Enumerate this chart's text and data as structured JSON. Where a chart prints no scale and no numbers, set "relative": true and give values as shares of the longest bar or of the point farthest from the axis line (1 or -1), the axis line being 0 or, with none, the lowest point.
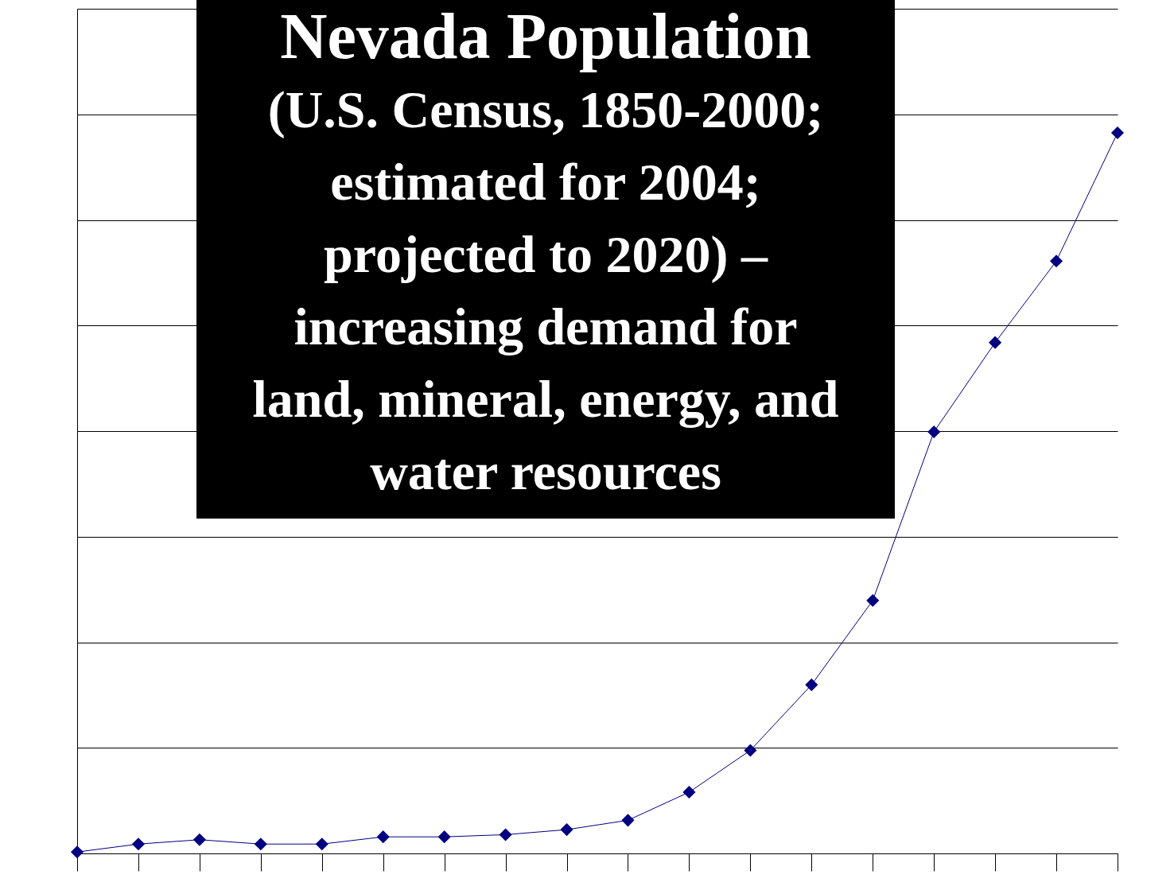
{
  "chart_data": {
    "type": "line",
    "title": "Nevada Population",
    "subtitle": "(U.S. Census, 1850-2000; estimated for 2004; projected to 2020) – increasing demand for land, mineral, energy, and water resources",
    "relative": true,
    "categories": [
      null,
      null,
      null,
      null,
      null,
      null,
      null,
      null,
      null,
      null,
      null,
      null,
      null,
      null,
      null,
      null,
      null,
      null
    ],
    "series": [
      {
        "color": "#000080",
        "values": [
          0.002,
          0.013,
          0.019,
          0.013,
          0.013,
          0.023,
          0.023,
          0.026,
          0.033,
          0.046,
          0.085,
          0.143,
          0.234,
          0.351,
          0.585,
          0.709,
          0.822,
          1
        ]
      }
    ],
    "marker": "diamond",
    "line_style": "solid",
    "grid": "y"
  }
}
